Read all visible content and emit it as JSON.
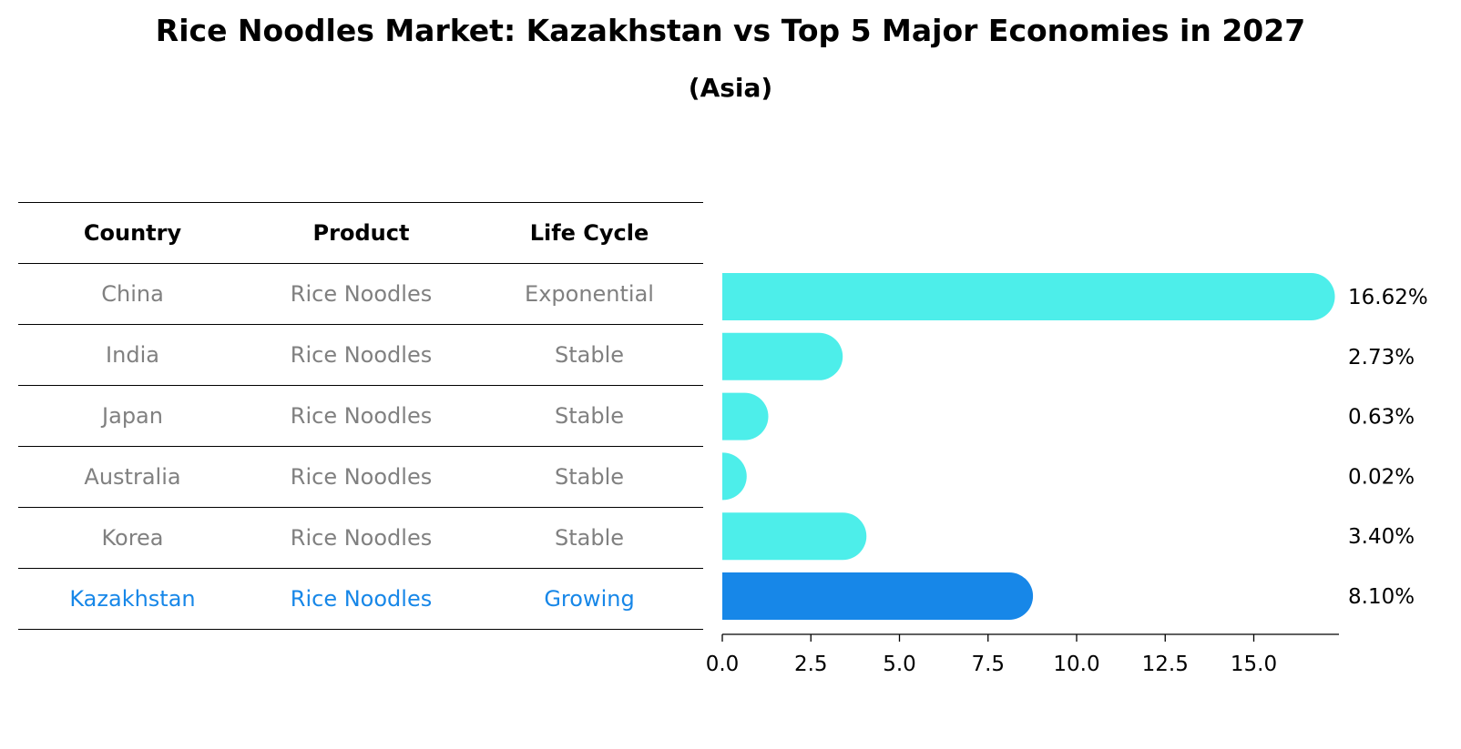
{
  "title": "Rice Noodles Market: Kazakhstan vs Top 5 Major Economies in 2027",
  "subtitle": "(Asia)",
  "table": {
    "headers": [
      "Country",
      "Product",
      "Life Cycle"
    ],
    "rows": [
      {
        "country": "China",
        "product": "Rice Noodles",
        "life_cycle": "Exponential"
      },
      {
        "country": "India",
        "product": "Rice Noodles",
        "life_cycle": "Stable"
      },
      {
        "country": "Japan",
        "product": "Rice Noodles",
        "life_cycle": "Stable"
      },
      {
        "country": "Australia",
        "product": "Rice Noodles",
        "life_cycle": "Stable"
      },
      {
        "country": "Korea",
        "product": "Rice Noodles",
        "life_cycle": "Stable"
      },
      {
        "country": "Kazakhstan",
        "product": "Rice Noodles",
        "life_cycle": "Growing"
      }
    ]
  },
  "colors": {
    "bar": "#4deeea",
    "highlight": "#1787e8",
    "muted_text": "#808080",
    "text": "#000000"
  },
  "chart_data": {
    "type": "bar",
    "orientation": "horizontal",
    "categories": [
      "China",
      "India",
      "Japan",
      "Australia",
      "Korea",
      "Kazakhstan"
    ],
    "values": [
      16.62,
      2.73,
      0.63,
      0.02,
      3.4,
      8.1
    ],
    "value_labels": [
      "16.62%",
      "2.73%",
      "0.63%",
      "0.02%",
      "3.40%",
      "8.10%"
    ],
    "highlight_category": "Kazakhstan",
    "xlim": [
      0,
      17.5
    ],
    "xticks": [
      0.0,
      2.5,
      5.0,
      7.5,
      10.0,
      12.5,
      15.0
    ],
    "xtick_labels": [
      "0.0",
      "2.5",
      "5.0",
      "7.5",
      "10.0",
      "12.5",
      "15.0"
    ],
    "grid": false
  }
}
